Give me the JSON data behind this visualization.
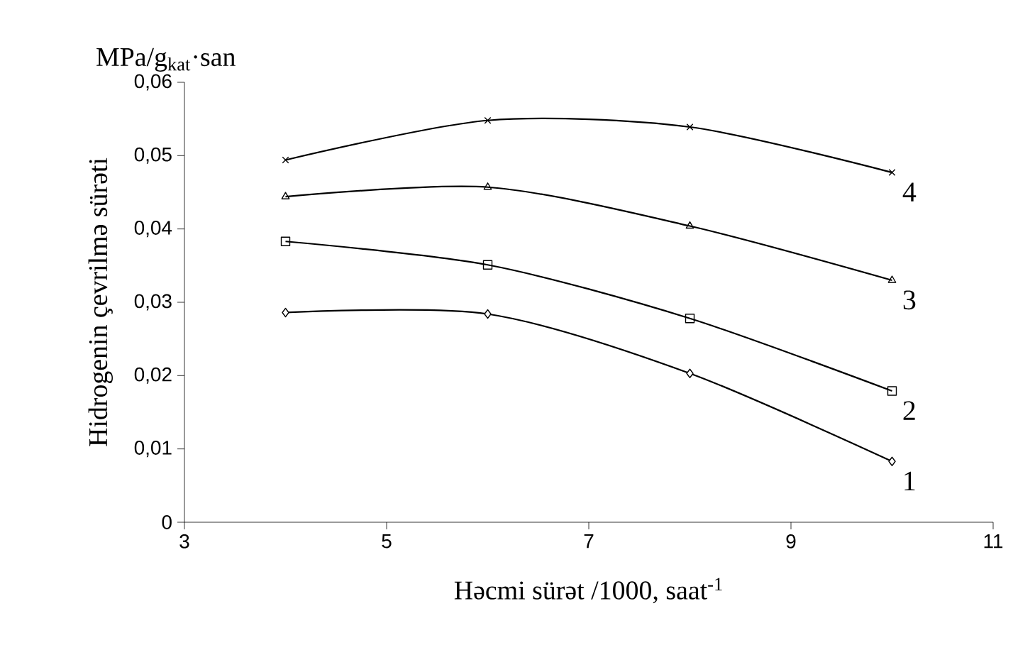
{
  "chart_data": {
    "type": "line",
    "xlabel": "Həcmi sürət /1000, saat$^{-1}$",
    "ylabel": "Hidrogenin  çevrilmə sürəti",
    "annotations": [
      "MPa/g$_{kat}$·san"
    ],
    "x": [
      4,
      6,
      8,
      10
    ],
    "series": [
      {
        "name": "1",
        "color": "#000000",
        "marker": "diamond",
        "values": [
          0.0286,
          0.0284,
          0.0203,
          0.0083
        ]
      },
      {
        "name": "2",
        "color": "#000000",
        "marker": "square",
        "values": [
          0.0383,
          0.0351,
          0.0278,
          0.0179
        ]
      },
      {
        "name": "3",
        "color": "#000000",
        "marker": "triangle",
        "values": [
          0.0444,
          0.0457,
          0.0404,
          0.033
        ]
      },
      {
        "name": "4",
        "color": "#000000",
        "marker": "cross",
        "values": [
          0.0494,
          0.0548,
          0.0539,
          0.0477
        ]
      }
    ],
    "xlim": [
      3,
      11
    ],
    "xticks": [
      3,
      5,
      7,
      9,
      11
    ],
    "ylim": [
      0,
      0.06
    ],
    "yticks": [
      0,
      {
        "value": 0.01,
        "label": "0,01"
      },
      {
        "value": 0.02,
        "label": "0,02"
      },
      {
        "value": 0.03,
        "label": "0,03"
      },
      {
        "value": 0.04,
        "label": "0,04"
      },
      {
        "value": 0.05,
        "label": "0,05"
      },
      {
        "value": 0.06,
        "label": "0,06"
      }
    ],
    "grid": false,
    "legend": false,
    "line_style": "solid"
  }
}
